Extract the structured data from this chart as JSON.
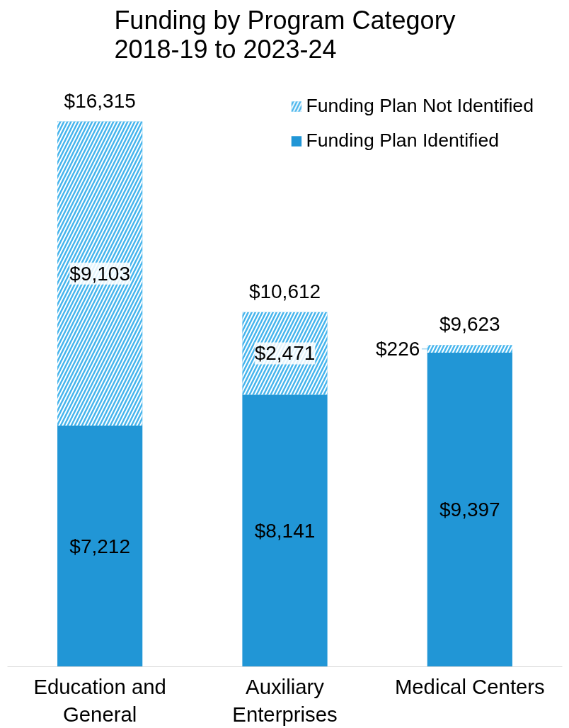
{
  "chart_data": {
    "type": "bar",
    "title": "Funding by Program Category\n2018-19 to 2023-24",
    "categories": [
      "Education and General",
      "Auxiliary Enterprises",
      "Medical Centers"
    ],
    "stacked": true,
    "legend": "top right",
    "grid": false,
    "series": [
      {
        "name": "Funding Plan Identified",
        "color": "#2196d6",
        "values": [
          7212,
          8141,
          9397
        ],
        "value_labels": [
          "$7,212",
          "$8,141",
          "$9,397"
        ]
      },
      {
        "name": "Funding Plan Not Identified",
        "color": "#45b4ec",
        "values": [
          9103,
          2471,
          226
        ],
        "value_labels": [
          "$9,103",
          "$2,471",
          "$226"
        ]
      }
    ],
    "totals": [
      "$16,315",
      "$10,612",
      "$9,623"
    ]
  }
}
